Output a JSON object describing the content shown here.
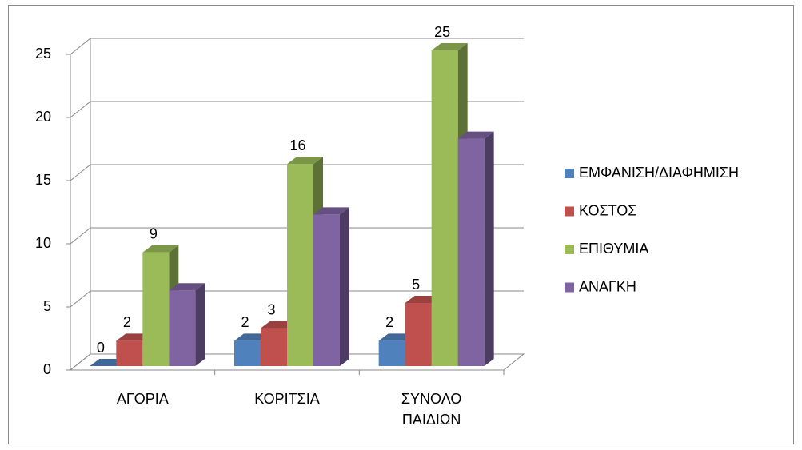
{
  "chart_data": {
    "type": "bar3d",
    "categories": [
      "ΑΓΟΡΙΑ",
      "ΚΟΡΙΤΣΙΑ",
      "ΣΥΝΟΛΟ ΠΑΙΔΙΩΝ"
    ],
    "series": [
      {
        "name": "ΕΜΦΑΝΙΣΗ/ΔΙΑΦΗΜΙΣΗ",
        "color": "#4f81bd",
        "values": [
          0,
          2,
          2
        ],
        "data_labels": true
      },
      {
        "name": "ΚΟΣΤΟΣ",
        "color": "#c0504d",
        "values": [
          2,
          3,
          5
        ],
        "data_labels": true
      },
      {
        "name": "ΕΠΙΘΥΜΙΑ",
        "color": "#9bbb59",
        "values": [
          9,
          16,
          25
        ],
        "data_labels": true
      },
      {
        "name": "ΑΝΑΓΚΗ",
        "color": "#8064a2",
        "values": [
          6,
          12,
          18
        ],
        "data_labels": false
      }
    ],
    "ylim": [
      0,
      25
    ],
    "yticks": [
      0,
      5,
      10,
      15,
      20,
      25
    ],
    "grid": true,
    "legend": "right"
  }
}
